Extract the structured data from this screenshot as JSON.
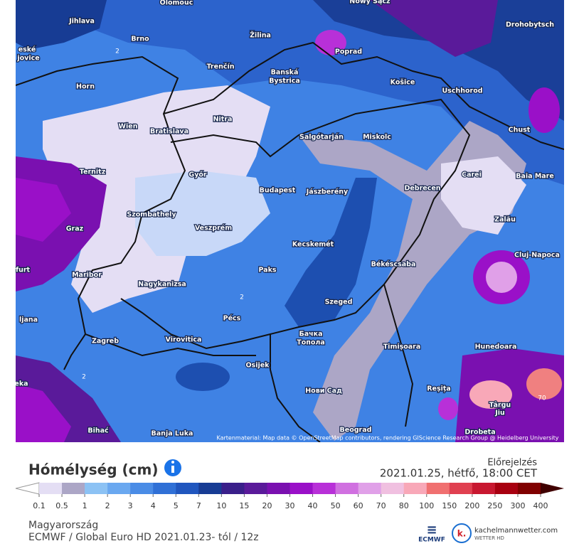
{
  "map": {
    "cities": [
      "Olomouc",
      "Nowy Sącz",
      "Jihlava",
      "Brno",
      "Žilina",
      "Poprad",
      "Drohobytsch",
      "eské",
      "jovice",
      "Trenčín",
      "Banská",
      "Bystrica",
      "Horn",
      "Košice",
      "Uschhorod",
      "Nitra",
      "Wien",
      "Bratislava",
      "Salgótarján",
      "Miskolc",
      "Chust",
      "Ternitz",
      "Győr",
      "Carei",
      "Baia Mare",
      "Budapest",
      "Jászberény",
      "Debrecen",
      "Szombathely",
      "Graz",
      "Veszprém",
      "Zalău",
      "Kecskemét",
      "Cluj-Napoca",
      "furt",
      "Maribor",
      "Békéscsaba",
      "Paks",
      "Nagykanizsa",
      "ljana",
      "Pécs",
      "Szeged",
      "Бачка",
      "Топола",
      "Zagreb",
      "Virovitica",
      "Timișoara",
      "Hunedoara",
      "Osijek",
      "Reșița",
      "Нови Сад",
      "Târgu",
      "Jiu",
      "eka",
      "Bihać",
      "Banja Luka",
      "Beograd",
      "Drobeta"
    ],
    "contour_labels": [
      "2",
      "2",
      "2",
      "70"
    ],
    "attribution": "Kartenmaterial: Map data © OpenStreetMap contributors, rendering GIScience Research Group @ Heidelberg University"
  },
  "legend": {
    "title": "Hómélység (cm)",
    "forecast_label": "Előrejelzés",
    "forecast_time": "2021.01.25, hétfő, 18:00 CET",
    "labels": [
      "0.1",
      "0.5",
      "1",
      "2",
      "3",
      "4",
      "5",
      "7",
      "10",
      "15",
      "20",
      "30",
      "40",
      "50",
      "60",
      "70",
      "80",
      "100",
      "150",
      "200",
      "250",
      "300",
      "400"
    ],
    "colors": [
      "#e4def4",
      "#aca6c6",
      "#8cc2f4",
      "#6aa8f0",
      "#4a8ce6",
      "#3070d6",
      "#2056be",
      "#173c94",
      "#3a1f8a",
      "#5a1a9a",
      "#7a10b0",
      "#9a10c8",
      "#b830d8",
      "#d070e0",
      "#e0a0e8",
      "#f0c0e0",
      "#f8a8b8",
      "#f07070",
      "#e04050",
      "#c81830",
      "#a80010",
      "#800000"
    ],
    "low_color": "#ffffff",
    "high_color": "#400000"
  },
  "footer": {
    "region": "Magyarország",
    "model": "ECMWF / Global Euro HD 2021.01.23- tól / 12z",
    "ecmwf": "ECMWF",
    "brand": "kachelmannwetter.com",
    "brand_sub": "WETTER HD",
    "brand_icon": "k."
  }
}
